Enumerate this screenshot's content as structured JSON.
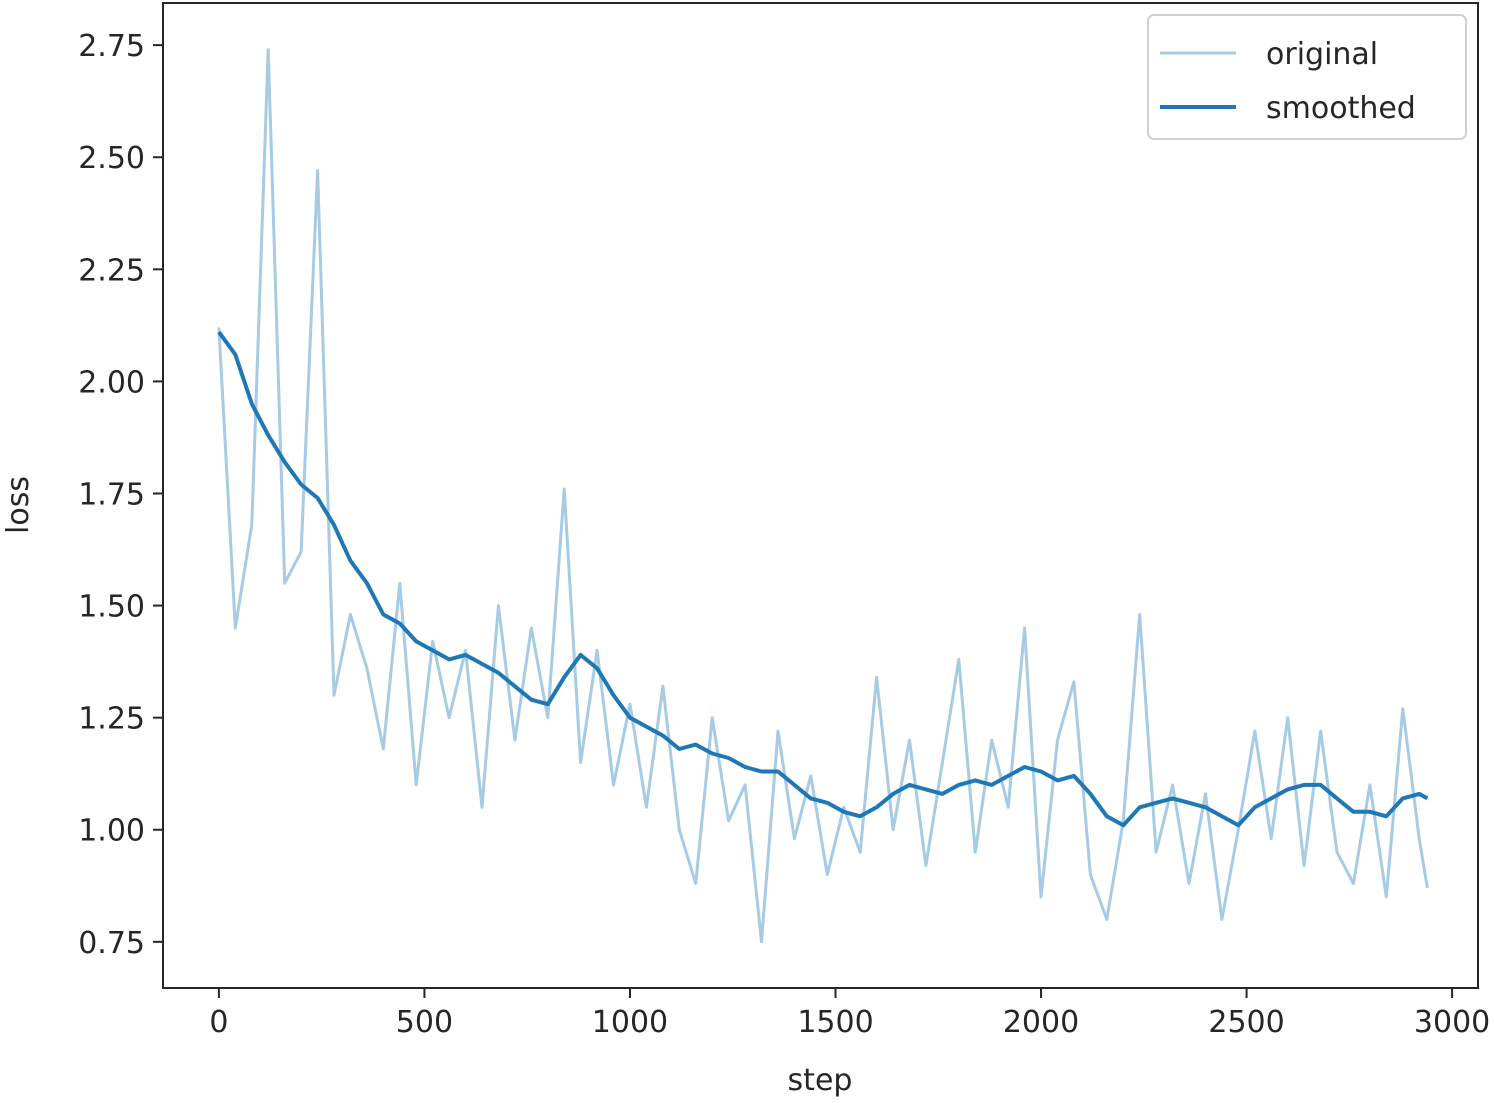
{
  "chart_data": {
    "type": "line",
    "xlabel": "step",
    "ylabel": "loss",
    "x": [
      0,
      40,
      80,
      120,
      160,
      200,
      240,
      280,
      320,
      360,
      400,
      440,
      480,
      520,
      560,
      600,
      640,
      680,
      720,
      760,
      800,
      840,
      880,
      920,
      960,
      1000,
      1040,
      1080,
      1120,
      1160,
      1200,
      1240,
      1280,
      1320,
      1360,
      1400,
      1440,
      1480,
      1520,
      1560,
      1600,
      1640,
      1680,
      1720,
      1760,
      1800,
      1840,
      1880,
      1920,
      1960,
      2000,
      2040,
      2080,
      2120,
      2160,
      2200,
      2240,
      2280,
      2320,
      2360,
      2400,
      2440,
      2480,
      2520,
      2560,
      2600,
      2640,
      2680,
      2720,
      2760,
      2800,
      2840,
      2880,
      2920,
      2940
    ],
    "series": [
      {
        "name": "original",
        "color": "#a6cbe3",
        "values": [
          2.12,
          1.45,
          1.68,
          2.74,
          1.55,
          1.62,
          2.47,
          1.3,
          1.48,
          1.36,
          1.18,
          1.55,
          1.1,
          1.42,
          1.25,
          1.4,
          1.05,
          1.5,
          1.2,
          1.45,
          1.25,
          1.76,
          1.15,
          1.4,
          1.1,
          1.28,
          1.05,
          1.32,
          1.0,
          0.88,
          1.25,
          1.02,
          1.1,
          0.75,
          1.22,
          0.98,
          1.12,
          0.9,
          1.05,
          0.95,
          1.34,
          1.0,
          1.2,
          0.92,
          1.15,
          1.38,
          0.95,
          1.2,
          1.05,
          1.45,
          0.85,
          1.2,
          1.33,
          0.9,
          0.8,
          1.02,
          1.48,
          0.95,
          1.1,
          0.88,
          1.08,
          0.8,
          1.0,
          1.22,
          0.98,
          1.25,
          0.92,
          1.22,
          0.95,
          0.88,
          1.1,
          0.85,
          1.27,
          0.98,
          0.87
        ]
      },
      {
        "name": "smoothed",
        "color": "#1f77b4",
        "values": [
          2.11,
          2.06,
          1.95,
          1.88,
          1.82,
          1.77,
          1.74,
          1.68,
          1.6,
          1.55,
          1.48,
          1.46,
          1.42,
          1.4,
          1.38,
          1.39,
          1.37,
          1.35,
          1.32,
          1.29,
          1.28,
          1.34,
          1.39,
          1.36,
          1.3,
          1.25,
          1.23,
          1.21,
          1.18,
          1.19,
          1.17,
          1.16,
          1.14,
          1.13,
          1.13,
          1.1,
          1.07,
          1.06,
          1.04,
          1.03,
          1.05,
          1.08,
          1.1,
          1.09,
          1.08,
          1.1,
          1.11,
          1.1,
          1.12,
          1.14,
          1.13,
          1.11,
          1.12,
          1.08,
          1.03,
          1.01,
          1.05,
          1.06,
          1.07,
          1.06,
          1.05,
          1.03,
          1.01,
          1.05,
          1.07,
          1.09,
          1.1,
          1.1,
          1.07,
          1.04,
          1.04,
          1.03,
          1.07,
          1.08,
          1.07
        ]
      }
    ],
    "xlim": [
      -136,
      3063
    ],
    "ylim": [
      0.647,
      2.844
    ],
    "xticks": [
      0,
      500,
      1000,
      1500,
      2000,
      2500,
      3000
    ],
    "yticks": [
      0.75,
      {
        "value": 1.0,
        "label": "1.00"
      },
      1.25,
      {
        "value": 1.5,
        "label": "1.50"
      },
      1.75,
      {
        "value": 2.0,
        "label": "2.00"
      },
      2.25,
      {
        "value": 2.5,
        "label": "2.50"
      },
      2.75
    ],
    "legend": "upper right"
  }
}
